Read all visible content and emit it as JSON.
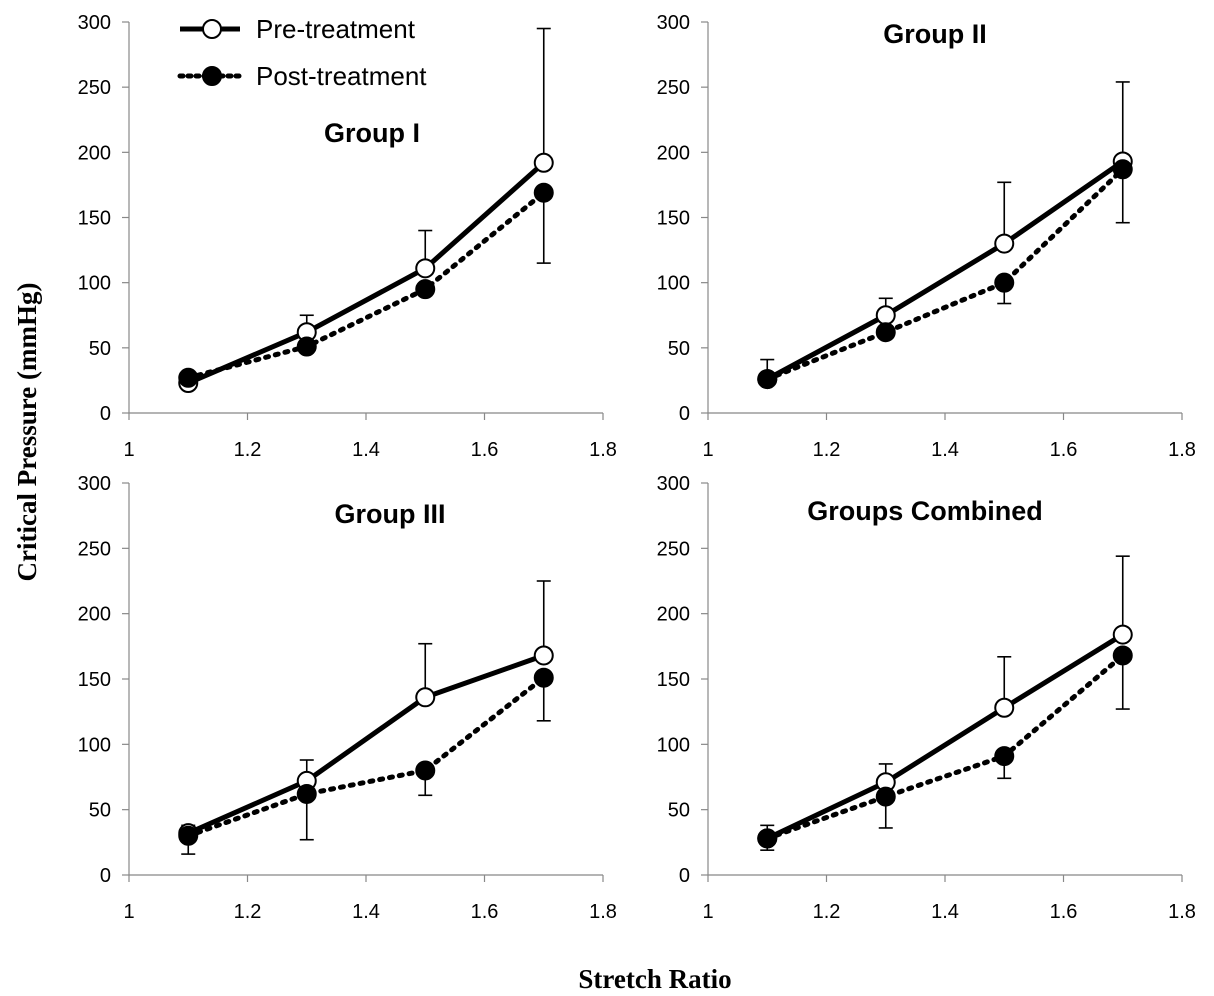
{
  "figure": {
    "ylabel": "Critical Pressure (mmHg)",
    "xlabel": "Stretch Ratio"
  },
  "legend": {
    "placement": "top-left of first panel",
    "items": [
      {
        "label": "Pre-treatment",
        "line": "solid",
        "marker": "open-circle"
      },
      {
        "label": "Post-treatment",
        "line": "dotted",
        "marker": "filled-circle"
      }
    ]
  },
  "chart_data": [
    {
      "type": "line",
      "title": "Group I",
      "x": [
        1.1,
        1.3,
        1.5,
        1.7
      ],
      "xlim": [
        1,
        1.8
      ],
      "ylim": [
        0,
        300
      ],
      "xticks": [
        "1",
        "1.2",
        "1.4",
        "1.6",
        "1.8"
      ],
      "yticks": [
        "0",
        "50",
        "100",
        "150",
        "200",
        "250",
        "300"
      ],
      "grid": false,
      "series": [
        {
          "name": "Pre-treatment",
          "values": [
            23,
            62,
            111,
            192
          ],
          "error_upper": [
            null,
            75,
            140,
            295
          ],
          "error_lower": [
            null,
            null,
            null,
            null
          ]
        },
        {
          "name": "Post-treatment",
          "values": [
            27,
            51,
            95,
            169
          ],
          "error_upper": [
            null,
            null,
            null,
            null
          ],
          "error_lower": [
            null,
            null,
            null,
            115
          ]
        }
      ]
    },
    {
      "type": "line",
      "title": "Group II",
      "x": [
        1.1,
        1.3,
        1.5,
        1.7
      ],
      "xlim": [
        1,
        1.8
      ],
      "ylim": [
        0,
        300
      ],
      "xticks": [
        "1",
        "1.2",
        "1.4",
        "1.6",
        "1.8"
      ],
      "yticks": [
        "0",
        "50",
        "100",
        "150",
        "200",
        "250",
        "300"
      ],
      "grid": false,
      "series": [
        {
          "name": "Pre-treatment",
          "values": [
            26,
            75,
            130,
            193
          ],
          "error_upper": [
            41,
            88,
            177,
            254
          ],
          "error_lower": [
            null,
            null,
            null,
            null
          ]
        },
        {
          "name": "Post-treatment",
          "values": [
            26,
            62,
            100,
            187
          ],
          "error_upper": [
            null,
            null,
            null,
            null
          ],
          "error_lower": [
            null,
            null,
            84,
            146
          ]
        }
      ]
    },
    {
      "type": "line",
      "title": "Group III",
      "x": [
        1.1,
        1.3,
        1.5,
        1.7
      ],
      "xlim": [
        1,
        1.8
      ],
      "ylim": [
        0,
        300
      ],
      "xticks": [
        "1",
        "1.2",
        "1.4",
        "1.6",
        "1.8"
      ],
      "yticks": [
        "0",
        "50",
        "100",
        "150",
        "200",
        "250",
        "300"
      ],
      "grid": false,
      "series": [
        {
          "name": "Pre-treatment",
          "values": [
            32,
            72,
            136,
            168
          ],
          "error_upper": [
            38,
            88,
            177,
            225
          ],
          "error_lower": [
            null,
            null,
            null,
            null
          ]
        },
        {
          "name": "Post-treatment",
          "values": [
            30,
            62,
            80,
            151
          ],
          "error_upper": [
            null,
            null,
            null,
            null
          ],
          "error_lower": [
            16,
            27,
            61,
            118
          ]
        }
      ]
    },
    {
      "type": "line",
      "title": "Groups Combined",
      "x": [
        1.1,
        1.3,
        1.5,
        1.7
      ],
      "xlim": [
        1,
        1.8
      ],
      "ylim": [
        0,
        300
      ],
      "xticks": [
        "1",
        "1.2",
        "1.4",
        "1.6",
        "1.8"
      ],
      "yticks": [
        "0",
        "50",
        "100",
        "150",
        "200",
        "250",
        "300"
      ],
      "grid": false,
      "series": [
        {
          "name": "Pre-treatment",
          "values": [
            28,
            71,
            128,
            184
          ],
          "error_upper": [
            38,
            85,
            167,
            244
          ],
          "error_lower": [
            null,
            null,
            null,
            null
          ]
        },
        {
          "name": "Post-treatment",
          "values": [
            28,
            60,
            91,
            168
          ],
          "error_upper": [
            null,
            null,
            null,
            null
          ],
          "error_lower": [
            19,
            36,
            74,
            127
          ]
        }
      ]
    }
  ]
}
